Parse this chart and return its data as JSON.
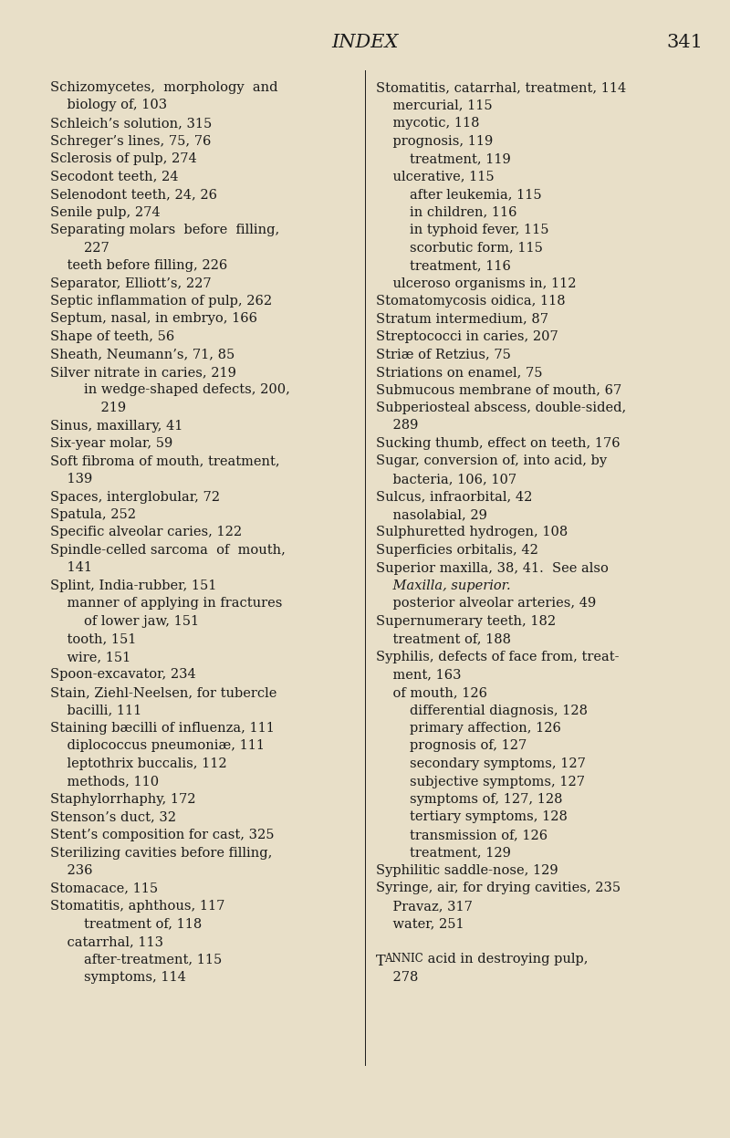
{
  "bg_color": "#e8dfc8",
  "text_color": "#1a1a1a",
  "header_title": "INDEX",
  "header_page": "341",
  "font_size": 10.5,
  "header_font_size": 15,
  "left_column": [
    [
      "Schizomycetes,  morphology  and",
      0
    ],
    [
      "    biology of, 103",
      0
    ],
    [
      "Schleich’s solution, 315",
      0
    ],
    [
      "Schreger’s lines, 75, 76",
      0
    ],
    [
      "Sclerosis of pulp, 274",
      0
    ],
    [
      "Secodont teeth, 24",
      0
    ],
    [
      "Selenodont teeth, 24, 26",
      0
    ],
    [
      "Senile pulp, 274",
      0
    ],
    [
      "Separating molars  before  filling,",
      0
    ],
    [
      "        227",
      0
    ],
    [
      "    teeth before filling, 226",
      0
    ],
    [
      "Separator, Elliott’s, 227",
      0
    ],
    [
      "Septic inflammation of pulp, 262",
      0
    ],
    [
      "Septum, nasal, in embryo, 166",
      0
    ],
    [
      "Shape of teeth, 56",
      0
    ],
    [
      "Sheath, Neumann’s, 71, 85",
      0
    ],
    [
      "Silver nitrate in caries, 219",
      0
    ],
    [
      "        in wedge-shaped defects, 200,",
      0
    ],
    [
      "            219",
      0
    ],
    [
      "Sinus, maxillary, 41",
      0
    ],
    [
      "Six-year molar, 59",
      0
    ],
    [
      "Soft fibroma of mouth, treatment,",
      0
    ],
    [
      "    139",
      0
    ],
    [
      "Spaces, interglobular, 72",
      0
    ],
    [
      "Spatula, 252",
      0
    ],
    [
      "Specific alveolar caries, 122",
      0
    ],
    [
      "Spindle-celled sarcoma  of  mouth,",
      0
    ],
    [
      "    141",
      0
    ],
    [
      "Splint, India-rubber, 151",
      0
    ],
    [
      "    manner of applying in fractures",
      0
    ],
    [
      "        of lower jaw, 151",
      0
    ],
    [
      "    tooth, 151",
      0
    ],
    [
      "    wire, 151",
      0
    ],
    [
      "Spoon-excavator, 234",
      0
    ],
    [
      "Stain, Ziehl-Neelsen, for tubercle",
      0
    ],
    [
      "    bacilli, 111",
      0
    ],
    [
      "Staining bæcilli of influenza, 111",
      0
    ],
    [
      "    diplococcus pneumoniæ, 111",
      0
    ],
    [
      "    leptothrix buccalis, 112",
      0
    ],
    [
      "    methods, 110",
      0
    ],
    [
      "Staphylorrhaphy, 172",
      0
    ],
    [
      "Stenson’s duct, 32",
      0
    ],
    [
      "Stent’s composition for cast, 325",
      0
    ],
    [
      "Sterilizing cavities before filling,",
      0
    ],
    [
      "    236",
      0
    ],
    [
      "Stomacace, 115",
      0
    ],
    [
      "Stomatitis, aphthous, 117",
      0
    ],
    [
      "        treatment of, 118",
      0
    ],
    [
      "    catarrhal, 113",
      0
    ],
    [
      "        after-treatment, 115",
      0
    ],
    [
      "        symptoms, 114",
      0
    ]
  ],
  "right_column": [
    [
      "Stomatitis, catarrhal, treatment, 114",
      0
    ],
    [
      "    mercurial, 115",
      0
    ],
    [
      "    mycotic, 118",
      0
    ],
    [
      "    prognosis, 119",
      0
    ],
    [
      "        treatment, 119",
      0
    ],
    [
      "    ulcerative, 115",
      0
    ],
    [
      "        after leukemia, 115",
      0
    ],
    [
      "        in children, 116",
      0
    ],
    [
      "        in typhoid fever, 115",
      0
    ],
    [
      "        scorbutic form, 115",
      0
    ],
    [
      "        treatment, 116",
      0
    ],
    [
      "    ulceroso organisms in, 112",
      0
    ],
    [
      "Stomatomycosis oidica, 118",
      0
    ],
    [
      "Stratum intermedium, 87",
      0
    ],
    [
      "Streptococci in caries, 207",
      0
    ],
    [
      "Striæ of Retzius, 75",
      0
    ],
    [
      "Striations on enamel, 75",
      0
    ],
    [
      "Submucous membrane of mouth, 67",
      0
    ],
    [
      "Subperiosteal abscess, double-sided,",
      0
    ],
    [
      "    289",
      0
    ],
    [
      "Sucking thumb, effect on teeth, 176",
      0
    ],
    [
      "Sugar, conversion of, into acid, by",
      0
    ],
    [
      "    bacteria, 106, 107",
      0
    ],
    [
      "Sulcus, infraorbital, 42",
      0
    ],
    [
      "    nasolabial, 29",
      0
    ],
    [
      "Sulphuretted hydrogen, 108",
      0
    ],
    [
      "Superficies orbitalis, 42",
      0
    ],
    [
      "Superior maxilla, 38, 41.  See also",
      0
    ],
    [
      "    Maxilla, superior.",
      1
    ],
    [
      "    posterior alveolar arteries, 49",
      0
    ],
    [
      "Supernumerary teeth, 182",
      0
    ],
    [
      "    treatment of, 188",
      0
    ],
    [
      "Syphilis, defects of face from, treat-",
      0
    ],
    [
      "    ment, 163",
      0
    ],
    [
      "    of mouth, 126",
      0
    ],
    [
      "        differential diagnosis, 128",
      0
    ],
    [
      "        primary affection, 126",
      0
    ],
    [
      "        prognosis of, 127",
      0
    ],
    [
      "        secondary symptoms, 127",
      0
    ],
    [
      "        subjective symptoms, 127",
      0
    ],
    [
      "        symptoms of, 127, 128",
      0
    ],
    [
      "        tertiary symptoms, 128",
      0
    ],
    [
      "        transmission of, 126",
      0
    ],
    [
      "        treatment, 129",
      0
    ],
    [
      "Syphilitic saddle-nose, 129",
      0
    ],
    [
      "Syringe, air, for drying cavities, 235",
      0
    ],
    [
      "    Pravaz, 317",
      0
    ],
    [
      "    water, 251",
      0
    ],
    [
      "",
      0
    ],
    [
      "TANNIC acid in destroying pulp,",
      2
    ],
    [
      "    278",
      0
    ]
  ]
}
